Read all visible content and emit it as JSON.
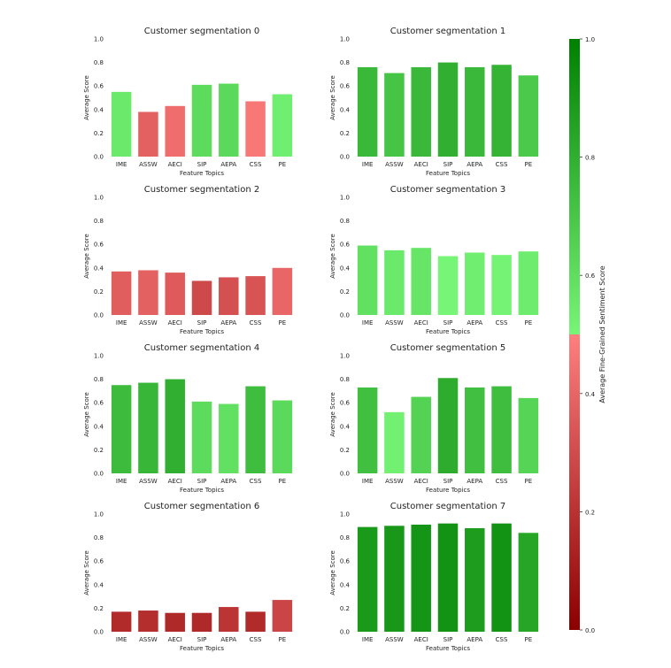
{
  "chart_data": {
    "type": "bar",
    "xlabel": "Feature Topics",
    "ylabel": "Average Score",
    "ylim": [
      0,
      1.0
    ],
    "yticks": [
      "0.0",
      "0.2",
      "0.4",
      "0.6",
      "0.8",
      "1.0"
    ],
    "categories": [
      "IME",
      "ASSW",
      "AECI",
      "SIP",
      "AEPA",
      "CSS",
      "PE"
    ],
    "panels": [
      {
        "title": "Customer segmentation 0",
        "values": [
          0.55,
          0.38,
          0.43,
          0.61,
          0.62,
          0.47,
          0.53
        ]
      },
      {
        "title": "Customer segmentation 1",
        "values": [
          0.76,
          0.71,
          0.76,
          0.8,
          0.76,
          0.78,
          0.69
        ]
      },
      {
        "title": "Customer segmentation 2",
        "values": [
          0.37,
          0.38,
          0.36,
          0.29,
          0.32,
          0.33,
          0.4
        ]
      },
      {
        "title": "Customer segmentation 3",
        "values": [
          0.59,
          0.55,
          0.57,
          0.5,
          0.53,
          0.51,
          0.54
        ]
      },
      {
        "title": "Customer segmentation 4",
        "values": [
          0.75,
          0.77,
          0.8,
          0.61,
          0.59,
          0.74,
          0.62
        ]
      },
      {
        "title": "Customer segmentation 5",
        "values": [
          0.73,
          0.52,
          0.65,
          0.81,
          0.73,
          0.74,
          0.64
        ]
      },
      {
        "title": "Customer segmentation 6",
        "values": [
          0.17,
          0.18,
          0.16,
          0.16,
          0.21,
          0.17,
          0.27
        ]
      },
      {
        "title": "Customer segmentation 7",
        "values": [
          0.89,
          0.9,
          0.91,
          0.92,
          0.88,
          0.92,
          0.84
        ]
      }
    ],
    "colorbar": {
      "label": "Average Fine-Grained Sentiment Score",
      "ticks": [
        "0.0",
        "0.2",
        "0.4",
        "0.6",
        "0.8",
        "1.0"
      ],
      "colors": {
        "dark_red": "#8b0000",
        "light_red": "#ff7f7f",
        "light_green": "#77f577",
        "dark_green": "#008000"
      },
      "threshold": 0.5
    }
  }
}
